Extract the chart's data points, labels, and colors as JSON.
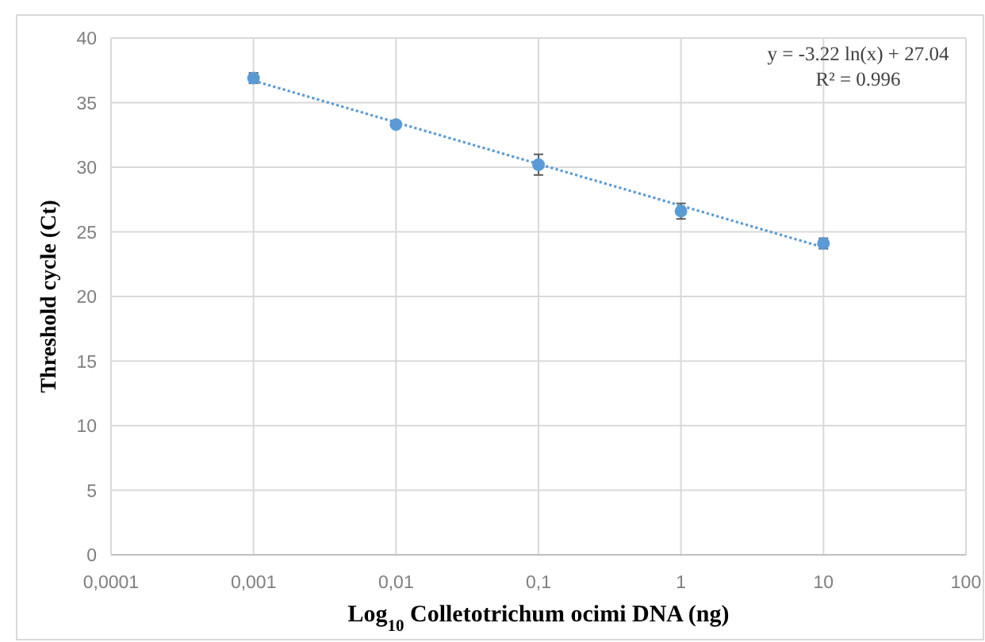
{
  "chart_data": {
    "type": "scatter",
    "xlabel": "Log$_{10}$ Colletotrichum ocimi DNA (ng)",
    "ylabel": "Threshold cycle (Ct)",
    "annotations": [
      "y = -3.22 ln(x) + 27.04",
      "R² = 0.996"
    ],
    "series": [
      {
        "color": "#5b9bd5",
        "x": [
          0.001,
          0.01,
          0.1,
          1,
          10
        ],
        "values": [
          36.9,
          33.3,
          30.2,
          26.6,
          24.1
        ],
        "errors": [
          0.4,
          null,
          0.8,
          0.6,
          0.4
        ],
        "marker": "circle"
      },
      {
        "type": "line",
        "color": "#5b9bd5",
        "x": [
          0.001,
          10
        ],
        "values": [
          36.7,
          23.8
        ],
        "line_style": "dotted"
      }
    ],
    "log": "x",
    "xlim": [
      0.0001,
      100
    ],
    "xticks": [
      {
        "value": 0.0001,
        "label": "0,0001"
      },
      {
        "value": 0.001,
        "label": "0,001"
      },
      {
        "value": 0.01,
        "label": "0,01"
      },
      {
        "value": 0.1,
        "label": "0,1"
      },
      1,
      10,
      100
    ],
    "ylim": [
      0,
      40
    ],
    "yticks": [
      0,
      5,
      10,
      15,
      20,
      25,
      30,
      35,
      40
    ],
    "grid": true
  }
}
